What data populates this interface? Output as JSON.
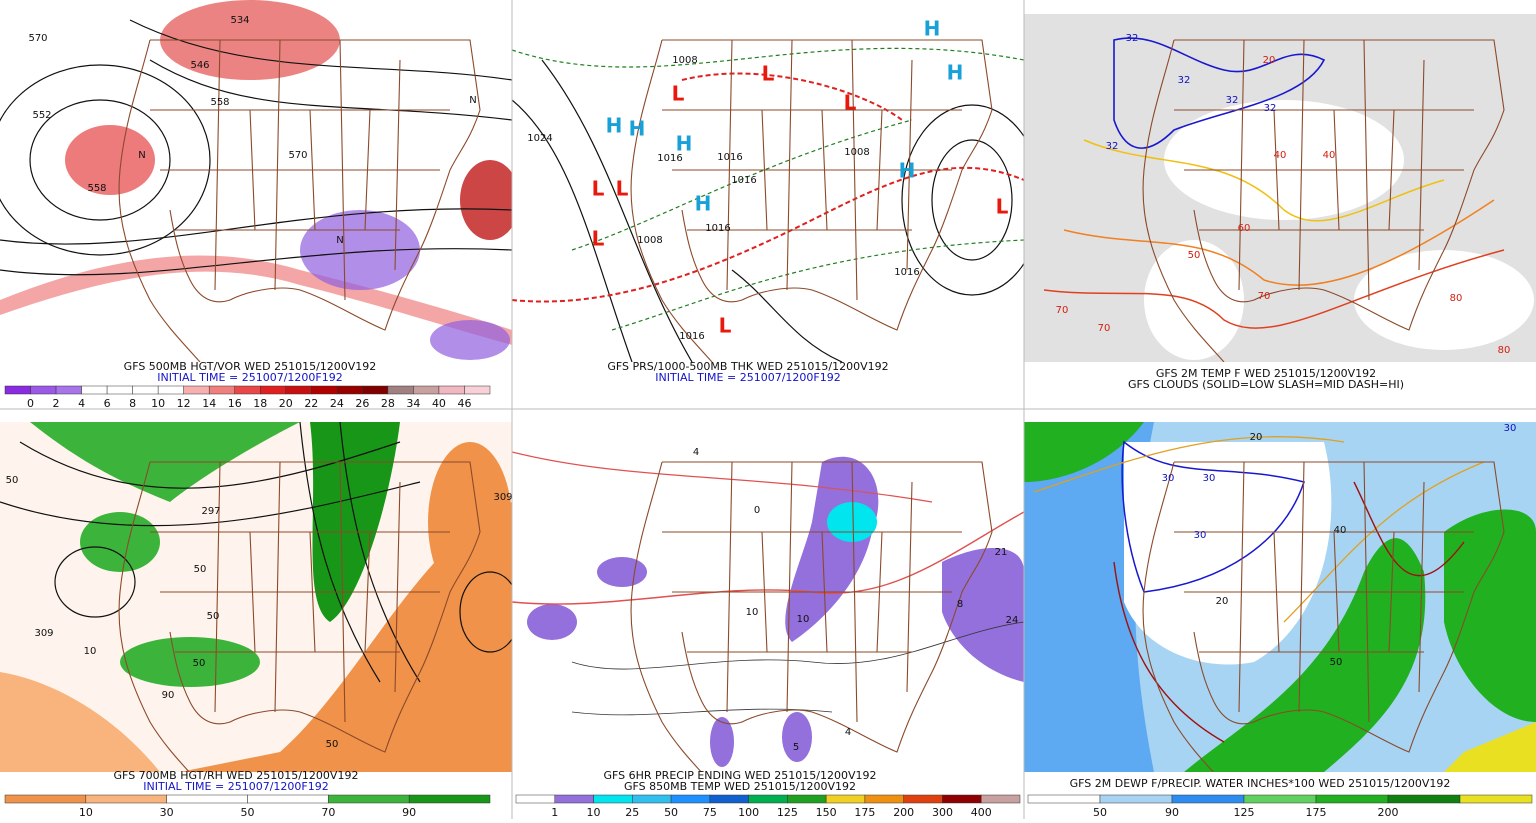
{
  "panels": [
    {
      "caption": [
        "GFS 500MB HGT/VOR WED 251015/1200V192",
        "INITIAL TIME = 251007/1200F192"
      ],
      "colorbar": {
        "labels": [
          0,
          2,
          4,
          6,
          8,
          10,
          12,
          14,
          16,
          18,
          20,
          22,
          24,
          26,
          28,
          34,
          40,
          46
        ],
        "colors": [
          "#8a2be2",
          "#9b59e8",
          "#a874ea",
          "#ffffff",
          "#ffffff",
          "#ffffff",
          "#ffffff",
          "#f7b0b0",
          "#f08080",
          "#e84848",
          "#e02020",
          "#c81010",
          "#b00000",
          "#980000",
          "#800000",
          "#a08080",
          "#c8a0a0",
          "#f0b8c0",
          "#f8d0d8"
        ]
      },
      "map_labels": [
        "570",
        "552",
        "546",
        "534",
        "558",
        "570",
        "558",
        "N",
        "N",
        "N"
      ]
    },
    {
      "caption": [
        "GFS PRS/1000-500MB THK WED 251015/1200V192",
        "INITIAL TIME = 251007/1200F192"
      ],
      "map_labels": [
        "1024",
        "1008",
        "1016",
        "1016",
        "1016",
        "1016",
        "1008",
        "1016",
        "1016",
        "1008",
        "L",
        "L",
        "L",
        "L",
        "L",
        "L",
        "L",
        "L",
        "H",
        "H",
        "H",
        "H",
        "H",
        "H",
        "H"
      ]
    },
    {
      "caption": [
        "GFS 2M TEMP F WED 251015/1200V192",
        "GFS CLOUDS (SOLID=LOW SLASH=MID DASH=HI)"
      ],
      "map_labels": [
        "32",
        "32",
        "32",
        "32",
        "32",
        "20",
        "40",
        "40",
        "50",
        "60",
        "70",
        "70",
        "70",
        "80",
        "80"
      ]
    },
    {
      "caption": [
        "GFS 700MB HGT/RH WED 251015/1200V192",
        "INITIAL TIME = 251007/1200F192"
      ],
      "colorbar": {
        "labels": [
          10,
          30,
          50,
          70,
          90
        ],
        "colors": [
          "#f0924a",
          "#f8b47c",
          "#ffffff",
          "#ffffff",
          "#3cb43c",
          "#189618"
        ]
      },
      "map_labels": [
        "50",
        "309",
        "297",
        "50",
        "50",
        "10",
        "50",
        "90",
        "309",
        "50"
      ]
    },
    {
      "caption": [
        "GFS 6HR PRECIP ENDING WED 251015/1200V192",
        "GFS 850MB TEMP WED 251015/1200V192"
      ],
      "colorbar": {
        "labels": [
          1,
          10,
          25,
          50,
          75,
          100,
          125,
          150,
          175,
          200,
          300,
          400
        ],
        "colors": [
          "#ffffff",
          "#9370db",
          "#00e5ee",
          "#30c0f0",
          "#1e90ff",
          "#1060d0",
          "#00b050",
          "#20a020",
          "#f0d020",
          "#f09010",
          "#e04010",
          "#900000",
          "#c8a0a0"
        ]
      },
      "map_labels": [
        "4",
        "8",
        "24",
        "21",
        "10",
        "5",
        "4",
        "0",
        "10"
      ]
    },
    {
      "caption": [
        "GFS 2M DEWP F/PRECIP. WATER INCHES*100 WED 251015/1200V192"
      ],
      "colorbar": {
        "labels": [
          50,
          90,
          125,
          175,
          200
        ],
        "colors": [
          "#ffffff",
          "#a8d4f4",
          "#2c8cf0",
          "#60d060",
          "#20b020",
          "#108010",
          "#e8e020"
        ]
      },
      "map_labels": [
        "30",
        "30",
        "30",
        "20",
        "20",
        "40",
        "50",
        "30"
      ]
    }
  ]
}
